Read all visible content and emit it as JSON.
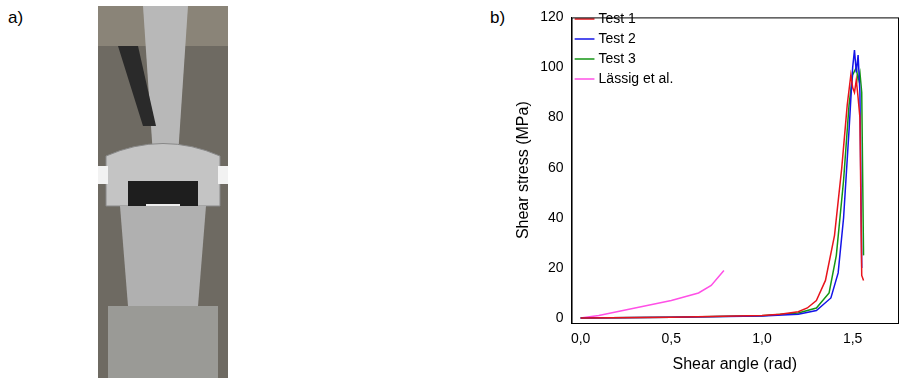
{
  "figure": {
    "panel_labels": [
      "a)",
      "b)"
    ]
  },
  "chart_data": {
    "type": "line",
    "x_label": "Shear angle (rad)",
    "y_label": "Shear stress (MPa)",
    "xlim": [
      -0.05,
      1.75
    ],
    "xticks": [
      {
        "value": 0,
        "label": "0,0"
      },
      {
        "value": 0.5,
        "label": "0,5"
      },
      {
        "value": 1.0,
        "label": "1,0"
      },
      {
        "value": 1.5,
        "label": "1,5"
      }
    ],
    "ylim": [
      -2,
      120
    ],
    "yticks": [
      0,
      20,
      40,
      60,
      80,
      100,
      120
    ],
    "grid": false,
    "legend": "upper left",
    "series": [
      {
        "name": "Test 1",
        "color": "#e8141c",
        "line_style": "solid",
        "x": [
          0.0,
          0.5,
          1.0,
          1.1,
          1.2,
          1.25,
          1.3,
          1.35,
          1.4,
          1.44,
          1.47,
          1.49,
          1.5,
          1.51,
          1.52,
          1.53,
          1.54,
          1.55,
          1.56
        ],
        "values": [
          0,
          0.3,
          1,
          1.5,
          2.5,
          4,
          7,
          15,
          33,
          60,
          85,
          97,
          92,
          90,
          95,
          88,
          80,
          17,
          15
        ]
      },
      {
        "name": "Test 2",
        "color": "#1414e8",
        "line_style": "solid",
        "x": [
          0.0,
          0.5,
          1.0,
          1.2,
          1.3,
          1.38,
          1.42,
          1.45,
          1.48,
          1.5,
          1.51,
          1.52,
          1.53,
          1.54,
          1.55
        ],
        "values": [
          0,
          0.3,
          0.8,
          1.5,
          3,
          8,
          18,
          40,
          75,
          100,
          107,
          98,
          105,
          90,
          20
        ]
      },
      {
        "name": "Test 3",
        "color": "#149614",
        "line_style": "solid",
        "x": [
          0.0,
          0.5,
          1.0,
          1.2,
          1.3,
          1.37,
          1.41,
          1.45,
          1.48,
          1.5,
          1.52,
          1.53,
          1.54,
          1.55,
          1.56
        ],
        "values": [
          0,
          0.3,
          0.9,
          2,
          4,
          10,
          25,
          55,
          85,
          97,
          100,
          95,
          98,
          90,
          25
        ]
      },
      {
        "name": "Lässig et al.",
        "color": "#ff50e6",
        "line_style": "solid",
        "x": [
          0.0,
          0.1,
          0.3,
          0.5,
          0.65,
          0.72,
          0.79
        ],
        "values": [
          0,
          1,
          4,
          7,
          10,
          13,
          19
        ]
      }
    ]
  }
}
